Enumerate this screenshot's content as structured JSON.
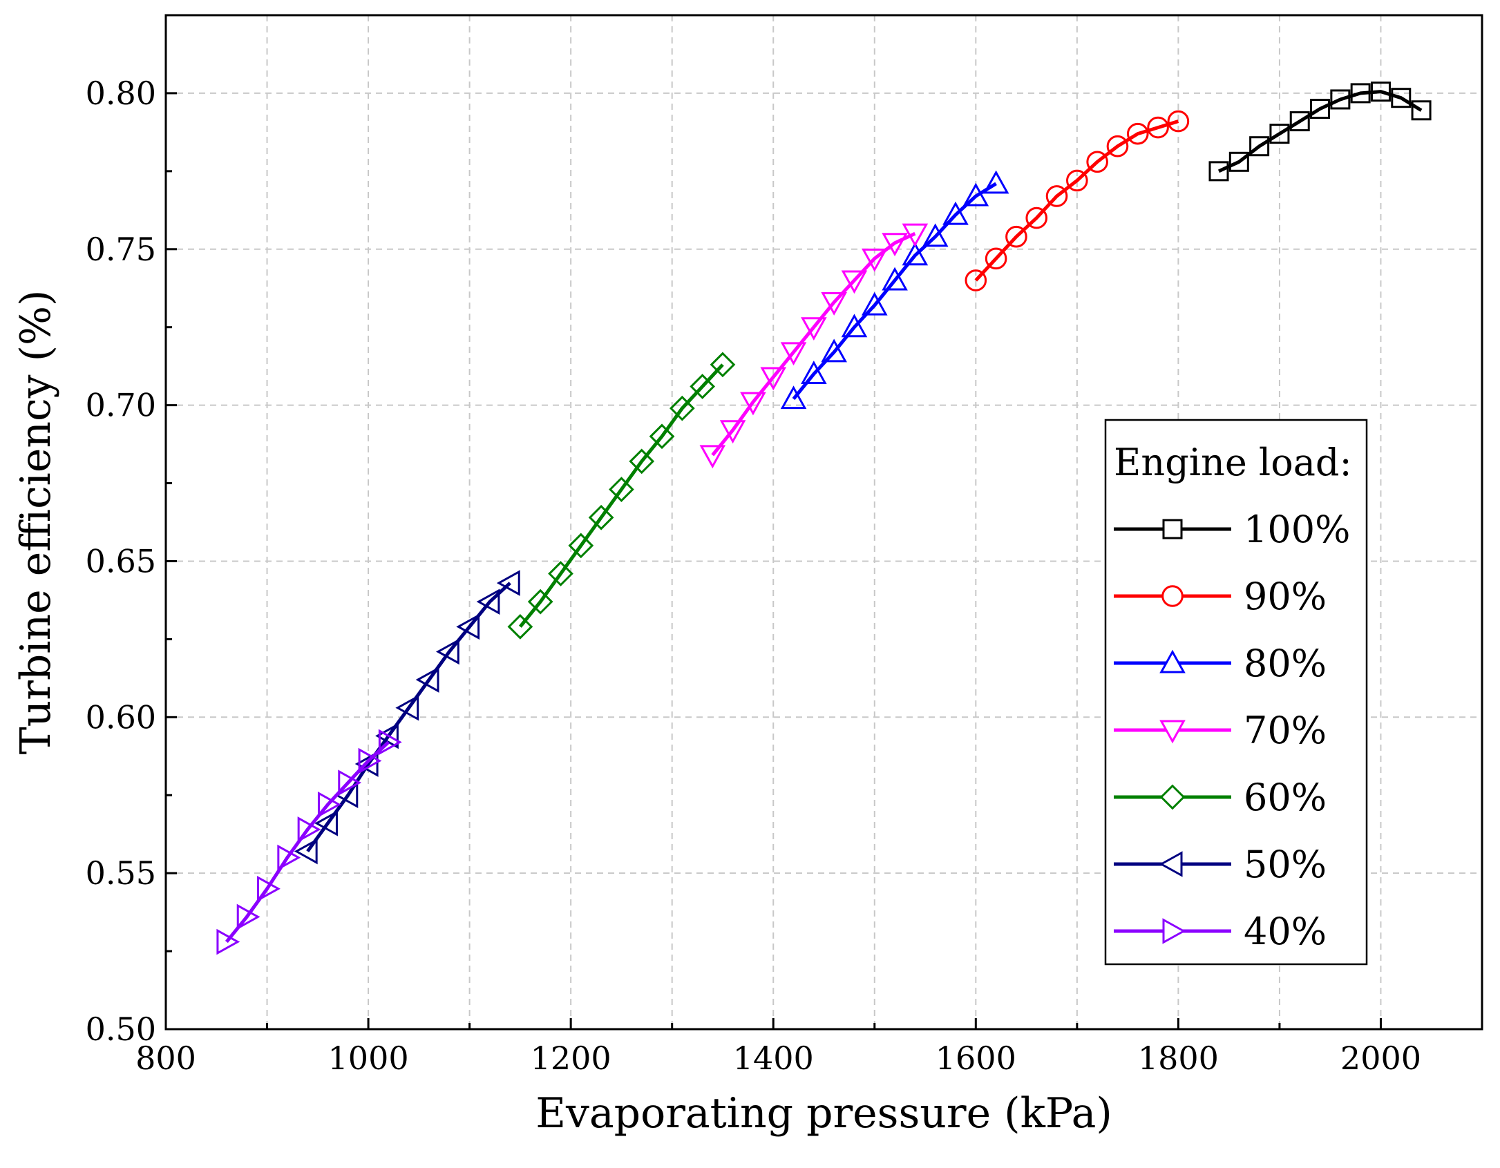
{
  "chart_data": {
    "type": "line",
    "title": "",
    "xlabel": "Evaporating pressure (kPa)",
    "ylabel": "Turbine efficiency (%)",
    "xlim": [
      800,
      2100
    ],
    "ylim": [
      0.5,
      0.825
    ],
    "xticks": [
      800,
      1000,
      1200,
      1400,
      1600,
      1800,
      2000
    ],
    "xtick_labels": [
      "800",
      "1000",
      "1200",
      "1400",
      "1600",
      "1800",
      "2000"
    ],
    "yticks": [
      0.5,
      0.55,
      0.6,
      0.65,
      0.7,
      0.75,
      0.8
    ],
    "ytick_labels": [
      "0.50",
      "0.55",
      "0.60",
      "0.65",
      "0.70",
      "0.75",
      "0.80"
    ],
    "grid": true,
    "legend_title": "Engine load:",
    "legend_position": "bottom-right",
    "series": [
      {
        "name": "100%",
        "color": "#000000",
        "marker": "square",
        "x": [
          1840,
          1860,
          1880,
          1900,
          1920,
          1940,
          1960,
          1980,
          2000,
          2020,
          2040
        ],
        "y": [
          0.775,
          0.778,
          0.783,
          0.787,
          0.791,
          0.795,
          0.798,
          0.8,
          0.8005,
          0.7985,
          0.7945
        ]
      },
      {
        "name": "90%",
        "color": "#ff0000",
        "marker": "circle",
        "x": [
          1600,
          1620,
          1640,
          1660,
          1680,
          1700,
          1720,
          1740,
          1760,
          1780,
          1800
        ],
        "y": [
          0.74,
          0.747,
          0.754,
          0.76,
          0.767,
          0.772,
          0.778,
          0.783,
          0.787,
          0.789,
          0.791
        ]
      },
      {
        "name": "80%",
        "color": "#0000ff",
        "marker": "triangle-up",
        "x": [
          1420,
          1440,
          1460,
          1480,
          1500,
          1520,
          1540,
          1560,
          1580,
          1600,
          1620
        ],
        "y": [
          0.702,
          0.71,
          0.717,
          0.725,
          0.732,
          0.74,
          0.748,
          0.754,
          0.761,
          0.767,
          0.771
        ]
      },
      {
        "name": "70%",
        "color": "#ff00ff",
        "marker": "triangle-down",
        "x": [
          1340,
          1360,
          1380,
          1400,
          1420,
          1440,
          1460,
          1480,
          1500,
          1520,
          1540
        ],
        "y": [
          0.684,
          0.692,
          0.701,
          0.709,
          0.717,
          0.725,
          0.733,
          0.74,
          0.747,
          0.752,
          0.755
        ]
      },
      {
        "name": "60%",
        "color": "#008000",
        "marker": "diamond",
        "x": [
          1150,
          1170,
          1190,
          1210,
          1230,
          1250,
          1270,
          1290,
          1310,
          1330,
          1350
        ],
        "y": [
          0.629,
          0.637,
          0.646,
          0.655,
          0.664,
          0.673,
          0.682,
          0.69,
          0.699,
          0.706,
          0.713
        ]
      },
      {
        "name": "50%",
        "color": "#000080",
        "marker": "triangle-left",
        "x": [
          940,
          960,
          980,
          1000,
          1020,
          1040,
          1060,
          1080,
          1100,
          1120,
          1140
        ],
        "y": [
          0.557,
          0.566,
          0.575,
          0.585,
          0.594,
          0.603,
          0.612,
          0.621,
          0.629,
          0.637,
          0.643
        ]
      },
      {
        "name": "40%",
        "color": "#8b00ff",
        "marker": "triangle-right",
        "x": [
          860,
          880,
          900,
          920,
          940,
          960,
          980,
          1000,
          1020
        ],
        "y": [
          0.528,
          0.536,
          0.545,
          0.555,
          0.564,
          0.572,
          0.579,
          0.586,
          0.592
        ]
      }
    ]
  }
}
